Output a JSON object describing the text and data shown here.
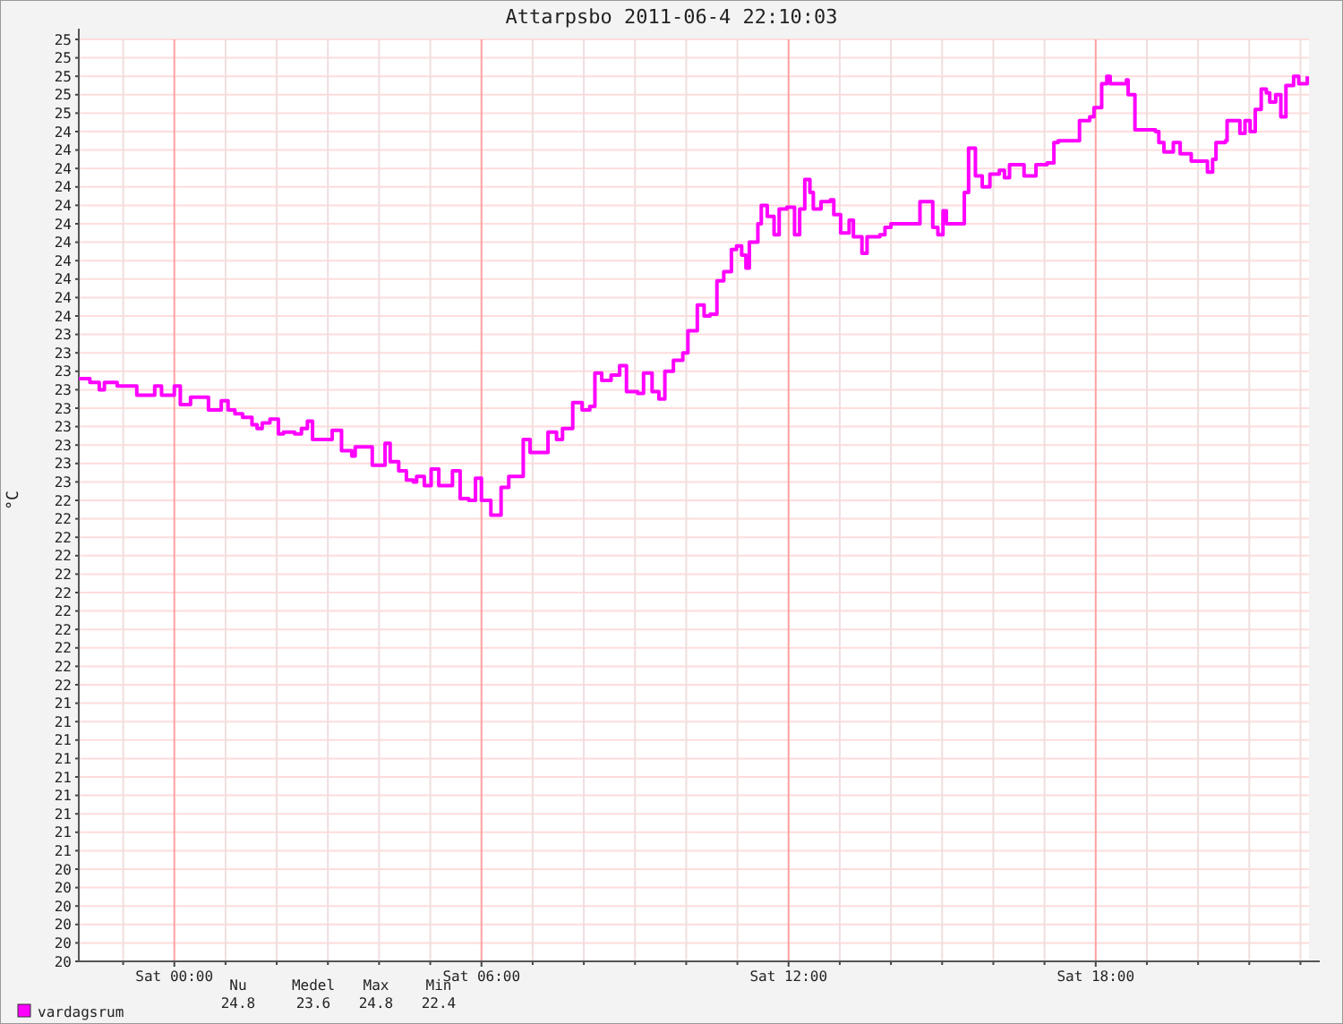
{
  "chart_data": {
    "type": "step",
    "title": "Attarpsbo 2011-06-4  22:10:03",
    "ylabel": "°C",
    "xlim": [
      "2011-06-03T22:08",
      "2011-06-04T22:10"
    ],
    "xticks": [
      {
        "value": "2011-06-03T23:00",
        "label": null
      },
      {
        "value": "2011-06-04T00:00",
        "label": "Sat 00:00"
      },
      {
        "value": "2011-06-04T01:00",
        "label": null
      },
      {
        "value": "2011-06-04T02:00",
        "label": null
      },
      {
        "value": "2011-06-04T03:00",
        "label": null
      },
      {
        "value": "2011-06-04T04:00",
        "label": null
      },
      {
        "value": "2011-06-04T05:00",
        "label": null
      },
      {
        "value": "2011-06-04T06:00",
        "label": "Sat 06:00"
      },
      {
        "value": "2011-06-04T07:00",
        "label": null
      },
      {
        "value": "2011-06-04T08:00",
        "label": null
      },
      {
        "value": "2011-06-04T09:00",
        "label": null
      },
      {
        "value": "2011-06-04T10:00",
        "label": null
      },
      {
        "value": "2011-06-04T11:00",
        "label": null
      },
      {
        "value": "2011-06-04T12:00",
        "label": "Sat 12:00"
      },
      {
        "value": "2011-06-04T13:00",
        "label": null
      },
      {
        "value": "2011-06-04T14:00",
        "label": null
      },
      {
        "value": "2011-06-04T15:00",
        "label": null
      },
      {
        "value": "2011-06-04T16:00",
        "label": null
      },
      {
        "value": "2011-06-04T17:00",
        "label": null
      },
      {
        "value": "2011-06-04T18:00",
        "label": "Sat 18:00"
      },
      {
        "value": "2011-06-04T19:00",
        "label": null
      },
      {
        "value": "2011-06-04T20:00",
        "label": null
      },
      {
        "value": "2011-06-04T21:00",
        "label": null
      },
      {
        "value": "2011-06-04T22:00",
        "label": null
      }
    ],
    "ylim": [
      20,
      25
    ],
    "yticks": [
      {
        "value": 25,
        "label": "25"
      },
      {
        "value": 24.9,
        "label": "25"
      },
      {
        "value": 24.8,
        "label": "25"
      },
      {
        "value": 24.7,
        "label": "25"
      },
      {
        "value": 24.6,
        "label": "25"
      },
      {
        "value": 24.5,
        "label": "24"
      },
      {
        "value": 24.4,
        "label": "24"
      },
      {
        "value": 24.3,
        "label": "24"
      },
      {
        "value": 24.2,
        "label": "24"
      },
      {
        "value": 24.1,
        "label": "24"
      },
      {
        "value": 24,
        "label": "24"
      },
      {
        "value": 23.9,
        "label": "24"
      },
      {
        "value": 23.8,
        "label": "24"
      },
      {
        "value": 23.7,
        "label": "24"
      },
      {
        "value": 23.6,
        "label": "24"
      },
      {
        "value": 23.5,
        "label": "24"
      },
      {
        "value": 23.4,
        "label": "23"
      },
      {
        "value": 23.3,
        "label": "23"
      },
      {
        "value": 23.2,
        "label": "23"
      },
      {
        "value": 23.1,
        "label": "23"
      },
      {
        "value": 23,
        "label": "23"
      },
      {
        "value": 22.9,
        "label": "23"
      },
      {
        "value": 22.8,
        "label": "23"
      },
      {
        "value": 22.7,
        "label": "23"
      },
      {
        "value": 22.6,
        "label": "23"
      },
      {
        "value": 22.5,
        "label": "22"
      },
      {
        "value": 22.4,
        "label": "22"
      },
      {
        "value": 22.3,
        "label": "22"
      },
      {
        "value": 22.2,
        "label": "22"
      },
      {
        "value": 22.1,
        "label": "22"
      },
      {
        "value": 22,
        "label": "22"
      },
      {
        "value": 21.9,
        "label": "22"
      },
      {
        "value": 21.8,
        "label": "22"
      },
      {
        "value": 21.7,
        "label": "22"
      },
      {
        "value": 21.6,
        "label": "22"
      },
      {
        "value": 21.5,
        "label": "22"
      },
      {
        "value": 21.4,
        "label": "21"
      },
      {
        "value": 21.3,
        "label": "21"
      },
      {
        "value": 21.2,
        "label": "21"
      },
      {
        "value": 21.1,
        "label": "21"
      },
      {
        "value": 21,
        "label": "21"
      },
      {
        "value": 20.9,
        "label": "21"
      },
      {
        "value": 20.8,
        "label": "21"
      },
      {
        "value": 20.7,
        "label": "21"
      },
      {
        "value": 20.6,
        "label": "21"
      },
      {
        "value": 20.5,
        "label": "20"
      },
      {
        "value": 20.4,
        "label": "20"
      },
      {
        "value": 20.3,
        "label": "20"
      },
      {
        "value": 20.2,
        "label": "20"
      },
      {
        "value": 20.1,
        "label": "20"
      },
      {
        "value": 20,
        "label": "20"
      }
    ],
    "grid": true,
    "legend": "bottom",
    "annotations": [
      "Nu",
      "Medel",
      "Max",
      "Min",
      "24.8",
      "23.6",
      "24.8",
      "22.4"
    ],
    "series": [
      {
        "name": "vardagsrum",
        "color": "#ff00ff",
        "x": [
          "2011-06-03T22:08",
          "2011-06-03T22:21",
          "2011-06-03T22:32",
          "2011-06-03T22:38",
          "2011-06-03T22:46",
          "2011-06-03T22:53",
          "2011-06-03T23:07",
          "2011-06-03T23:16",
          "2011-06-03T23:32",
          "2011-06-03T23:37",
          "2011-06-03T23:45",
          "2011-06-03T23:53",
          "2011-06-04T00:00",
          "2011-06-04T00:07",
          "2011-06-04T00:15",
          "2011-06-04T00:19",
          "2011-06-04T00:32",
          "2011-06-04T00:40",
          "2011-06-04T00:50",
          "2011-06-04T00:55",
          "2011-06-04T01:03",
          "2011-06-04T01:11",
          "2011-06-04T01:20",
          "2011-06-04T01:31",
          "2011-06-04T01:37",
          "2011-06-04T01:43",
          "2011-06-04T01:52",
          "2011-06-04T02:02",
          "2011-06-04T02:08",
          "2011-06-04T02:21",
          "2011-06-04T02:29",
          "2011-06-04T02:36",
          "2011-06-04T02:42",
          "2011-06-04T02:55",
          "2011-06-04T03:05",
          "2011-06-04T03:16",
          "2011-06-04T03:28",
          "2011-06-04T03:32",
          "2011-06-04T03:43",
          "2011-06-04T03:52",
          "2011-06-04T04:02",
          "2011-06-04T04:07",
          "2011-06-04T04:13",
          "2011-06-04T04:23",
          "2011-06-04T04:32",
          "2011-06-04T04:40",
          "2011-06-04T04:44",
          "2011-06-04T04:53",
          "2011-06-04T05:01",
          "2011-06-04T05:10",
          "2011-06-04T05:22",
          "2011-06-04T05:26",
          "2011-06-04T05:35",
          "2011-06-04T05:45",
          "2011-06-04T05:53",
          "2011-06-04T06:00",
          "2011-06-04T06:11",
          "2011-06-04T06:19",
          "2011-06-04T06:23",
          "2011-06-04T06:32",
          "2011-06-04T06:42",
          "2011-06-04T06:49",
          "2011-06-04T06:57",
          "2011-06-04T07:07",
          "2011-06-04T07:18",
          "2011-06-04T07:28",
          "2011-06-04T07:35",
          "2011-06-04T07:47",
          "2011-06-04T07:58",
          "2011-06-04T08:07",
          "2011-06-04T08:13",
          "2011-06-04T08:21",
          "2011-06-04T08:32",
          "2011-06-04T08:42",
          "2011-06-04T08:50",
          "2011-06-04T09:03",
          "2011-06-04T09:10",
          "2011-06-04T09:20",
          "2011-06-04T09:28",
          "2011-06-04T09:35",
          "2011-06-04T09:45",
          "2011-06-04T09:56",
          "2011-06-04T10:02",
          "2011-06-04T10:13",
          "2011-06-04T10:21",
          "2011-06-04T10:28",
          "2011-06-04T10:36",
          "2011-06-04T10:44",
          "2011-06-04T10:53",
          "2011-06-04T10:59",
          "2011-06-04T11:05",
          "2011-06-04T11:10",
          "2011-06-04T11:14",
          "2011-06-04T11:24",
          "2011-06-04T11:28",
          "2011-06-04T11:35",
          "2011-06-04T11:43",
          "2011-06-04T11:49",
          "2011-06-04T11:58",
          "2011-06-04T12:07",
          "2011-06-04T12:13",
          "2011-06-04T12:19",
          "2011-06-04T12:25",
          "2011-06-04T12:29",
          "2011-06-04T12:38",
          "2011-06-04T12:49",
          "2011-06-04T12:53",
          "2011-06-04T13:01",
          "2011-06-04T13:11",
          "2011-06-04T13:16",
          "2011-06-04T13:26",
          "2011-06-04T13:32",
          "2011-06-04T13:47",
          "2011-06-04T13:53",
          "2011-06-04T14:00",
          "2011-06-04T14:25",
          "2011-06-04T14:34",
          "2011-06-04T14:40",
          "2011-06-04T14:49",
          "2011-06-04T14:55",
          "2011-06-04T15:01",
          "2011-06-04T15:05",
          "2011-06-04T15:20",
          "2011-06-04T15:26",
          "2011-06-04T15:31",
          "2011-06-04T15:37",
          "2011-06-04T15:39",
          "2011-06-04T15:47",
          "2011-06-04T15:56",
          "2011-06-04T16:07",
          "2011-06-04T16:13",
          "2011-06-04T16:19",
          "2011-06-04T16:32",
          "2011-06-04T16:36",
          "2011-06-04T16:46",
          "2011-06-04T16:50",
          "2011-06-04T17:03",
          "2011-06-04T17:11",
          "2011-06-04T17:16",
          "2011-06-04T17:35",
          "2011-06-04T17:41",
          "2011-06-04T17:53",
          "2011-06-04T17:58",
          "2011-06-04T18:07",
          "2011-06-04T18:13",
          "2011-06-04T18:17",
          "2011-06-04T18:32",
          "2011-06-04T18:36",
          "2011-06-04T18:38",
          "2011-06-04T18:46",
          "2011-06-04T19:10",
          "2011-06-04T19:14",
          "2011-06-04T19:20",
          "2011-06-04T19:31",
          "2011-06-04T19:39",
          "2011-06-04T19:45",
          "2011-06-04T19:52",
          "2011-06-04T20:02",
          "2011-06-04T20:11",
          "2011-06-04T20:17",
          "2011-06-04T20:21",
          "2011-06-04T20:32",
          "2011-06-04T20:34",
          "2011-06-04T20:44",
          "2011-06-04T20:49",
          "2011-06-04T20:55",
          "2011-06-04T21:01",
          "2011-06-04T21:07",
          "2011-06-04T21:14",
          "2011-06-04T21:20",
          "2011-06-04T21:24",
          "2011-06-04T21:31",
          "2011-06-04T21:37",
          "2011-06-04T21:43",
          "2011-06-04T21:52",
          "2011-06-04T21:58",
          "2011-06-04T22:04",
          "2011-06-04T22:08"
        ],
        "values": [
          23.16,
          23.14,
          23.1,
          23.14,
          23.14,
          23.12,
          23.12,
          23.07,
          23.07,
          23.12,
          23.07,
          23.07,
          23.12,
          23.02,
          23.02,
          23.06,
          23.06,
          22.99,
          22.99,
          23.04,
          22.99,
          22.97,
          22.95,
          22.91,
          22.89,
          22.92,
          22.94,
          22.86,
          22.87,
          22.86,
          22.89,
          22.93,
          22.83,
          22.83,
          22.88,
          22.77,
          22.74,
          22.79,
          22.79,
          22.69,
          22.69,
          22.81,
          22.71,
          22.66,
          22.61,
          22.6,
          22.63,
          22.58,
          22.67,
          22.58,
          22.58,
          22.66,
          22.51,
          22.5,
          22.62,
          22.5,
          22.42,
          22.42,
          22.57,
          22.63,
          22.63,
          22.83,
          22.76,
          22.76,
          22.87,
          22.83,
          22.89,
          23.03,
          22.99,
          23.01,
          23.19,
          23.15,
          23.18,
          23.23,
          23.09,
          23.08,
          23.19,
          23.09,
          23.05,
          23.2,
          23.26,
          23.3,
          23.42,
          23.56,
          23.5,
          23.51,
          23.69,
          23.74,
          23.86,
          23.88,
          23.83,
          23.76,
          23.9,
          24,
          24.1,
          24.04,
          23.94,
          24.08,
          24.09,
          23.94,
          24.08,
          24.24,
          24.17,
          24.08,
          24.12,
          24.13,
          24.05,
          23.95,
          24.02,
          23.93,
          23.84,
          23.93,
          23.94,
          23.98,
          24,
          24,
          24.12,
          24.12,
          23.98,
          23.94,
          24.07,
          24,
          24,
          24.17,
          24.41,
          24.41,
          24.26,
          24.2,
          24.27,
          24.29,
          24.25,
          24.32,
          24.32,
          24.26,
          24.26,
          24.32,
          24.33,
          24.44,
          24.45,
          24.45,
          24.56,
          24.58,
          24.63,
          24.76,
          24.8,
          24.76,
          24.76,
          24.78,
          24.7,
          24.51,
          24.5,
          24.44,
          24.39,
          24.44,
          24.38,
          24.38,
          24.34,
          24.34,
          24.28,
          24.35,
          24.44,
          24.45,
          24.56,
          24.56,
          24.49,
          24.56,
          24.5,
          24.62,
          24.73,
          24.71,
          24.66,
          24.7,
          24.58,
          24.75,
          24.8,
          24.76,
          24.76,
          24.8
        ]
      }
    ]
  }
}
